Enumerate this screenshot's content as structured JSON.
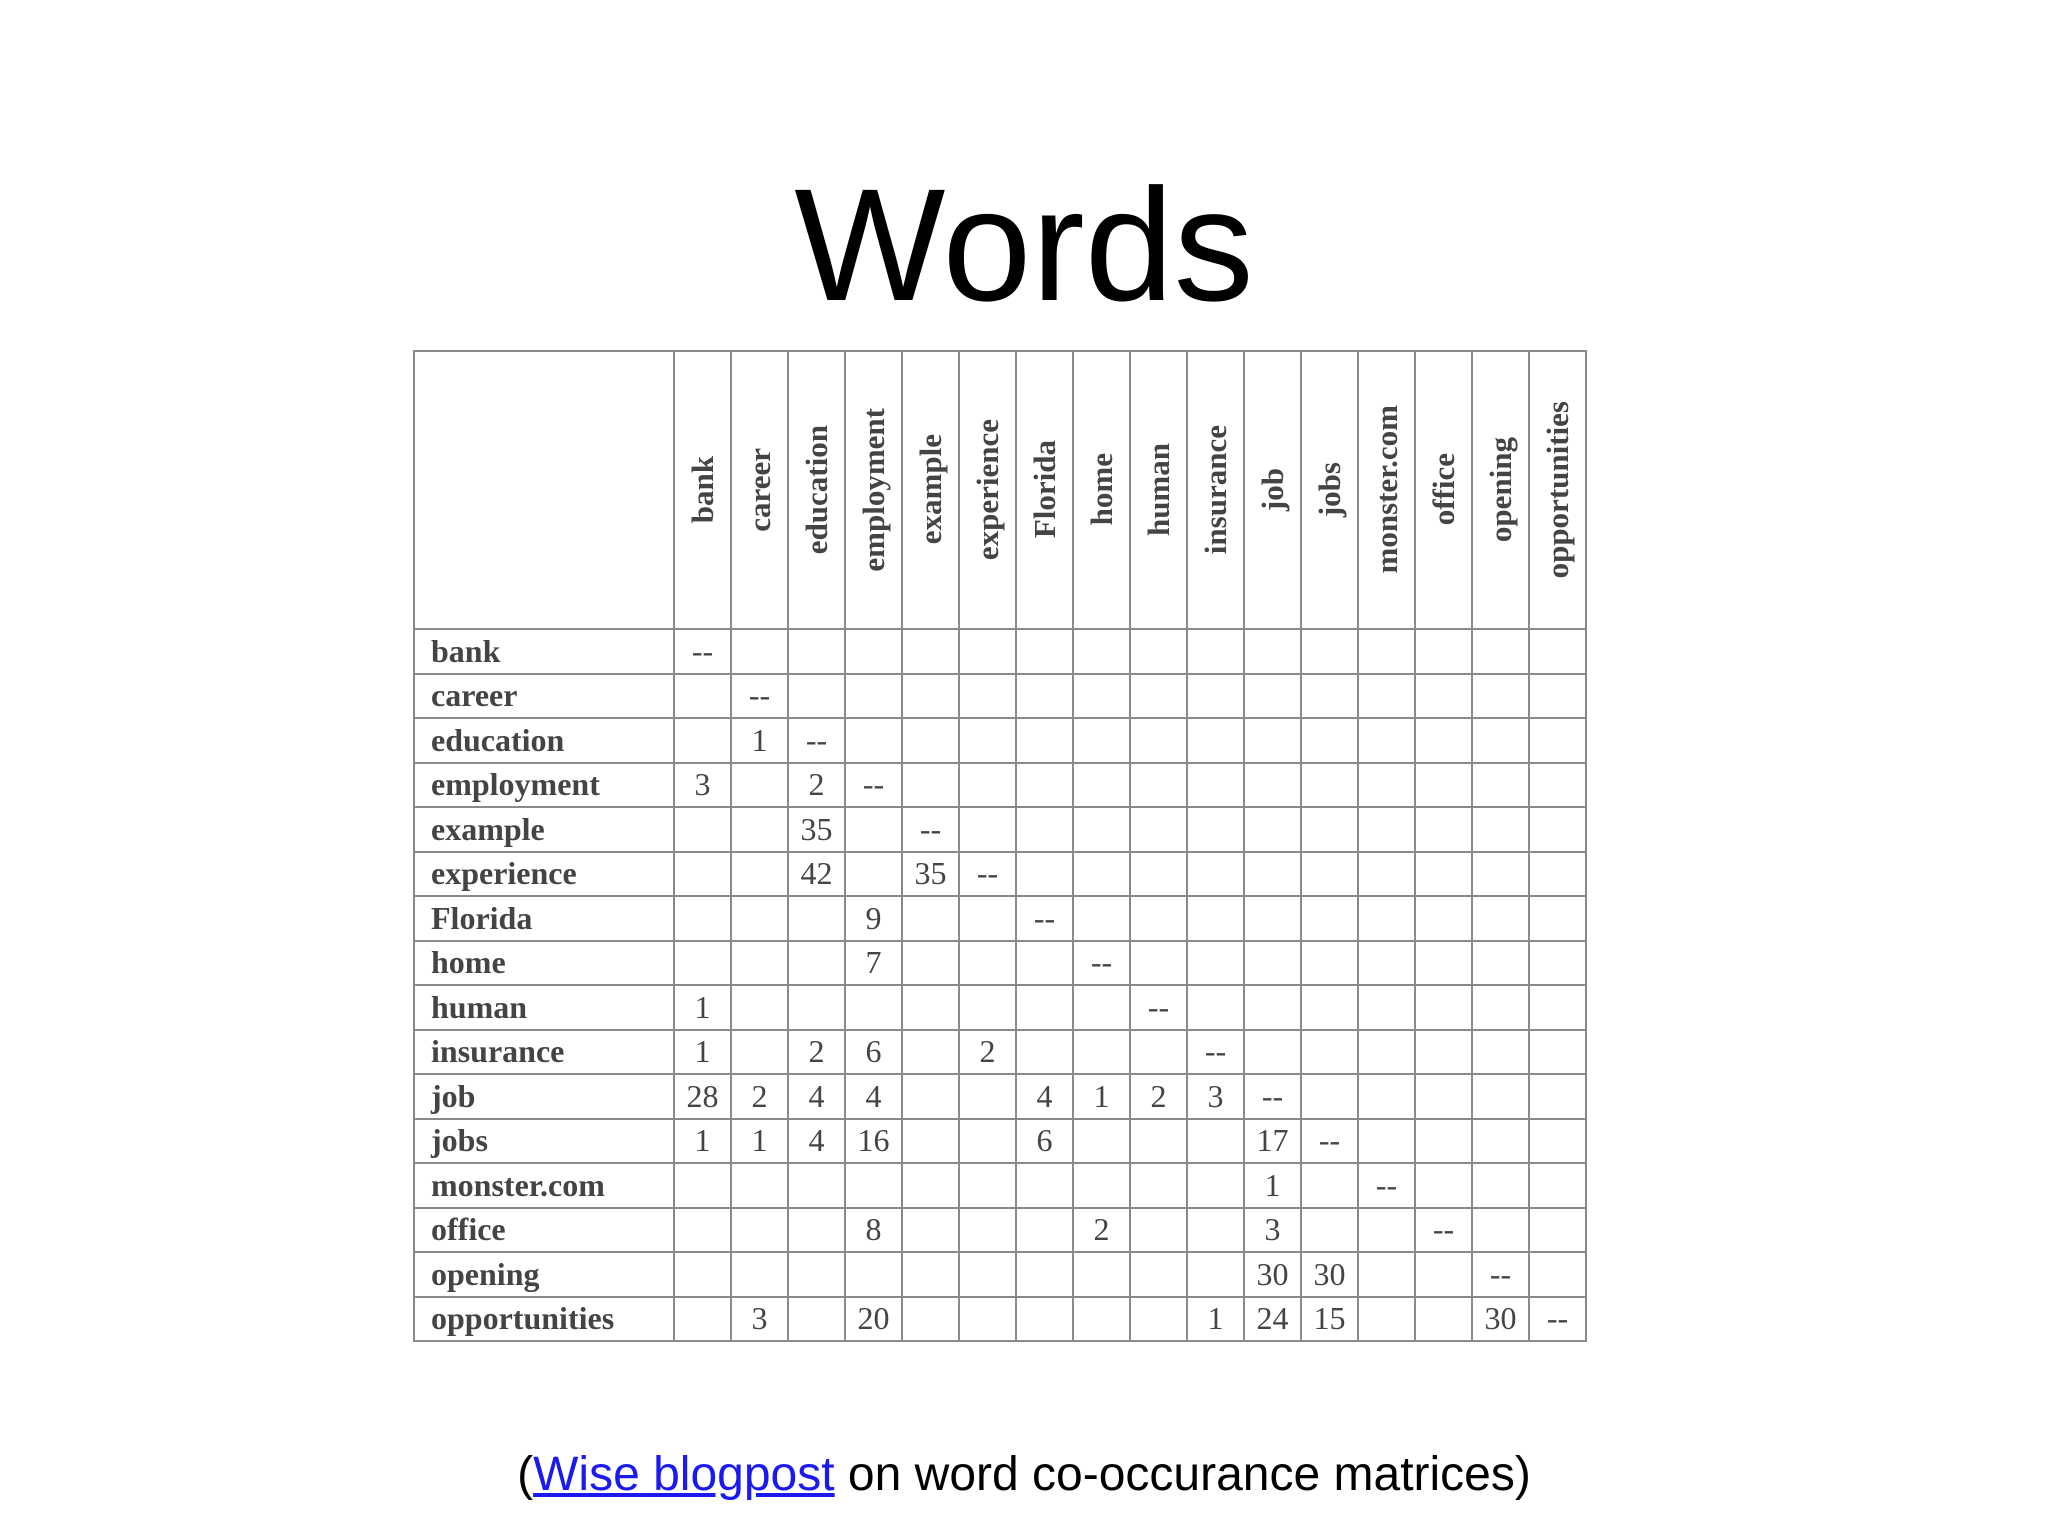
{
  "slide": {
    "title": "Words",
    "caption": {
      "open_paren": "(",
      "link_text": "Wise blogpost",
      "rest": " on word co-occurance matrices)"
    }
  },
  "matrix": {
    "columns": [
      "bank",
      "career",
      "education",
      "employment",
      "example",
      "experience",
      "Florida",
      "home",
      "human",
      "insurance",
      "job",
      "jobs",
      "monster.com",
      "office",
      "opening",
      "opportunities"
    ],
    "rows": [
      {
        "label": "bank",
        "cells": [
          "--",
          "",
          "",
          "",
          "",
          "",
          "",
          "",
          "",
          "",
          "",
          "",
          "",
          "",
          "",
          ""
        ]
      },
      {
        "label": "career",
        "cells": [
          "",
          "--",
          "",
          "",
          "",
          "",
          "",
          "",
          "",
          "",
          "",
          "",
          "",
          "",
          "",
          ""
        ]
      },
      {
        "label": "education",
        "cells": [
          "",
          "1",
          "--",
          "",
          "",
          "",
          "",
          "",
          "",
          "",
          "",
          "",
          "",
          "",
          "",
          ""
        ]
      },
      {
        "label": "employment",
        "cells": [
          "3",
          "",
          "2",
          "--",
          "",
          "",
          "",
          "",
          "",
          "",
          "",
          "",
          "",
          "",
          "",
          ""
        ]
      },
      {
        "label": "example",
        "cells": [
          "",
          "",
          "35",
          "",
          "--",
          "",
          "",
          "",
          "",
          "",
          "",
          "",
          "",
          "",
          "",
          ""
        ]
      },
      {
        "label": "experience",
        "cells": [
          "",
          "",
          "42",
          "",
          "35",
          "--",
          "",
          "",
          "",
          "",
          "",
          "",
          "",
          "",
          "",
          ""
        ]
      },
      {
        "label": "Florida",
        "cells": [
          "",
          "",
          "",
          "9",
          "",
          "",
          "--",
          "",
          "",
          "",
          "",
          "",
          "",
          "",
          "",
          ""
        ]
      },
      {
        "label": "home",
        "cells": [
          "",
          "",
          "",
          "7",
          "",
          "",
          "",
          "--",
          "",
          "",
          "",
          "",
          "",
          "",
          "",
          ""
        ]
      },
      {
        "label": "human",
        "cells": [
          "1",
          "",
          "",
          "",
          "",
          "",
          "",
          "",
          "--",
          "",
          "",
          "",
          "",
          "",
          "",
          ""
        ]
      },
      {
        "label": "insurance",
        "cells": [
          "1",
          "",
          "2",
          "6",
          "",
          "2",
          "",
          "",
          "",
          "--",
          "",
          "",
          "",
          "",
          "",
          ""
        ]
      },
      {
        "label": "job",
        "cells": [
          "28",
          "2",
          "4",
          "4",
          "",
          "",
          "4",
          "1",
          "2",
          "3",
          "--",
          "",
          "",
          "",
          "",
          ""
        ]
      },
      {
        "label": "jobs",
        "cells": [
          "1",
          "1",
          "4",
          "16",
          "",
          "",
          "6",
          "",
          "",
          "",
          "17",
          "--",
          "",
          "",
          "",
          ""
        ]
      },
      {
        "label": "monster.com",
        "cells": [
          "",
          "",
          "",
          "",
          "",
          "",
          "",
          "",
          "",
          "",
          "1",
          "",
          "--",
          "",
          "",
          ""
        ]
      },
      {
        "label": "office",
        "cells": [
          "",
          "",
          "",
          "8",
          "",
          "",
          "",
          "2",
          "",
          "",
          "3",
          "",
          "",
          "--",
          "",
          ""
        ]
      },
      {
        "label": "opening",
        "cells": [
          "",
          "",
          "",
          "",
          "",
          "",
          "",
          "",
          "",
          "",
          "30",
          "30",
          "",
          "",
          "--",
          ""
        ]
      },
      {
        "label": "opportunities",
        "cells": [
          "",
          "3",
          "",
          "20",
          "",
          "",
          "",
          "",
          "",
          "1",
          "24",
          "15",
          "",
          "",
          "30",
          "--"
        ]
      }
    ]
  }
}
